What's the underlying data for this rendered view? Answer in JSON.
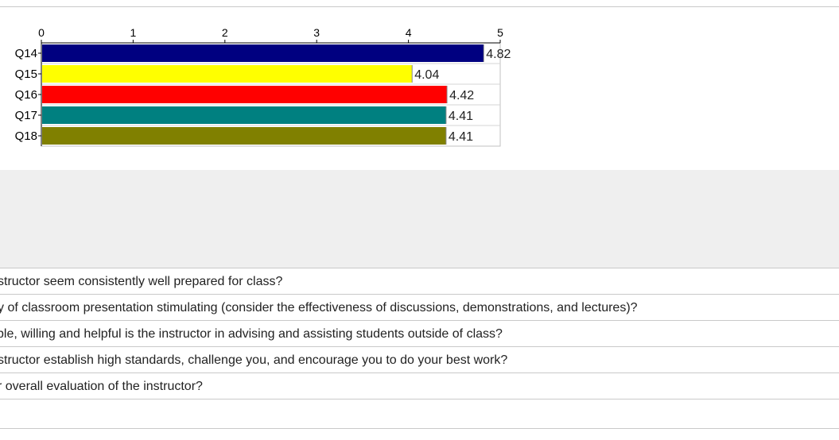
{
  "chart_data": {
    "type": "bar",
    "orientation": "horizontal",
    "categories": [
      "Q14",
      "Q15",
      "Q16",
      "Q17",
      "Q18"
    ],
    "values": [
      4.82,
      4.04,
      4.42,
      4.41,
      4.41
    ],
    "value_labels": [
      "4.82",
      "4.04",
      "4.42",
      "4.41",
      "4.41"
    ],
    "bar_colors": [
      "#000080",
      "#ffff00",
      "#ff0000",
      "#008080",
      "#808000"
    ],
    "xlim": [
      0,
      5
    ],
    "xticks": [
      "0",
      "1",
      "2",
      "3",
      "4",
      "5"
    ],
    "title": "",
    "xlabel": "",
    "ylabel": "",
    "grid": false,
    "legend": "none"
  },
  "questions": [
    {
      "text": "structor seem consistently well prepared for class?"
    },
    {
      "text": "y of classroom presentation stimulating (consider the effectiveness of discussions, demonstrations, and lectures)?"
    },
    {
      "text": "ble, willing and helpful is the instructor in advising and assisting students outside of class?"
    },
    {
      "text": "structor establish high standards, challenge you, and encourage you to do your best work?"
    },
    {
      "text": "r overall evaluation of the instructor?"
    }
  ]
}
